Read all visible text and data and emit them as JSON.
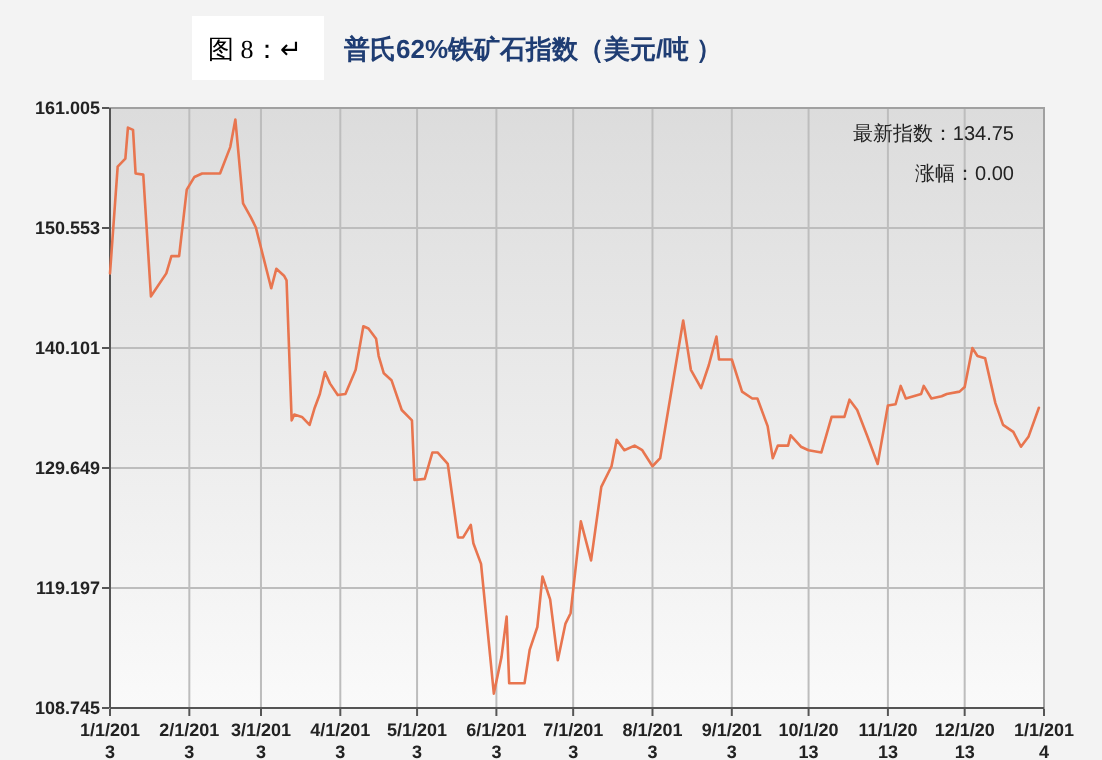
{
  "chart_data": {
    "type": "line",
    "title": "普氏62%铁矿石指数（美元/吨 ）",
    "annotations": [
      "图 8：↵",
      "最新指数：134.75",
      "涨幅：0.00"
    ],
    "x": [
      "2013-01-01",
      "2013-01-04",
      "2013-01-07",
      "2013-01-08",
      "2013-01-10",
      "2013-01-11",
      "2013-01-14",
      "2013-01-17",
      "2013-01-23",
      "2013-01-25",
      "2013-01-28",
      "2013-01-31",
      "2013-02-03",
      "2013-02-06",
      "2013-02-13",
      "2013-02-17",
      "2013-02-19",
      "2013-02-22",
      "2013-02-25",
      "2013-02-27",
      "2013-03-05",
      "2013-03-07",
      "2013-03-10",
      "2013-03-11",
      "2013-03-13",
      "2013-03-14",
      "2013-03-17",
      "2013-03-20",
      "2013-03-22",
      "2013-03-24",
      "2013-03-26",
      "2013-03-28",
      "2013-03-31",
      "2013-04-03",
      "2013-04-07",
      "2013-04-10",
      "2013-04-12",
      "2013-04-15",
      "2013-04-16",
      "2013-04-18",
      "2013-04-21",
      "2013-04-25",
      "2013-04-29",
      "2013-04-30",
      "2013-05-04",
      "2013-05-07",
      "2013-05-09",
      "2013-05-13",
      "2013-05-17",
      "2013-05-19",
      "2013-05-22",
      "2013-05-23",
      "2013-05-26",
      "2013-05-31",
      "2013-06-03",
      "2013-06-05",
      "2013-06-06",
      "2013-06-12",
      "2013-06-14",
      "2013-06-17",
      "2013-06-19",
      "2013-06-22",
      "2013-06-25",
      "2013-06-28",
      "2013-06-30",
      "2013-07-04",
      "2013-07-08",
      "2013-07-12",
      "2013-07-16",
      "2013-07-18",
      "2013-07-21",
      "2013-07-25",
      "2013-07-28",
      "2013-08-01",
      "2013-08-04",
      "2013-08-13",
      "2013-08-16",
      "2013-08-20",
      "2013-08-23",
      "2013-08-26",
      "2013-08-27",
      "2013-09-01",
      "2013-09-05",
      "2013-09-09",
      "2013-09-11",
      "2013-09-15",
      "2013-09-17",
      "2013-09-19",
      "2013-09-23",
      "2013-09-24",
      "2013-09-28",
      "2013-10-01",
      "2013-10-06",
      "2013-10-10",
      "2013-10-15",
      "2013-10-17",
      "2013-10-20",
      "2013-10-24",
      "2013-10-28",
      "2013-11-01",
      "2013-11-04",
      "2013-11-06",
      "2013-11-08",
      "2013-11-14",
      "2013-11-15",
      "2013-11-18",
      "2013-11-22",
      "2013-11-24",
      "2013-11-29",
      "2013-12-01",
      "2013-12-04",
      "2013-12-06",
      "2013-12-09",
      "2013-12-13",
      "2013-12-16",
      "2013-12-20",
      "2013-12-23",
      "2013-12-26",
      "2013-12-30"
    ],
    "series": [
      {
        "color": "#e8754f",
        "values": [
          146.6,
          155.9,
          156.6,
          159.3,
          159.1,
          155.3,
          155.2,
          144.6,
          146.6,
          148.1,
          148.1,
          153.9,
          155.0,
          155.3,
          155.3,
          157.6,
          160.0,
          152.7,
          151.5,
          150.6,
          145.3,
          147.0,
          146.4,
          146.0,
          133.8,
          134.3,
          134.1,
          133.4,
          134.9,
          136.1,
          138.0,
          137.0,
          136.0,
          136.1,
          138.2,
          142.0,
          141.8,
          140.9,
          139.4,
          137.9,
          137.3,
          134.7,
          133.8,
          128.6,
          128.7,
          131.0,
          131.0,
          130.0,
          123.6,
          123.6,
          124.7,
          123.1,
          121.3,
          110.0,
          113.2,
          116.7,
          110.9,
          110.9,
          113.8,
          115.8,
          120.2,
          118.2,
          112.9,
          116.1,
          117.0,
          125.0,
          121.6,
          128.0,
          129.8,
          132.1,
          131.2,
          131.6,
          131.2,
          129.8,
          130.5,
          142.5,
          138.2,
          136.6,
          138.6,
          141.1,
          139.1,
          139.1,
          136.3,
          135.7,
          135.7,
          133.3,
          130.5,
          131.6,
          131.6,
          132.5,
          131.5,
          131.2,
          131.0,
          134.1,
          134.1,
          135.6,
          134.7,
          132.4,
          130.0,
          135.1,
          135.2,
          136.8,
          135.7,
          136.1,
          136.8,
          135.7,
          135.9,
          136.1,
          136.3,
          136.7,
          140.1,
          139.4,
          139.2,
          135.3,
          133.4,
          132.8,
          131.5,
          132.4,
          134.9
        ]
      }
    ],
    "xlim": [
      "2013-01-01",
      "2014-01-01"
    ],
    "xticks": [
      {
        "value": "2013-01-01",
        "label": "1/1/2013"
      },
      {
        "value": "2013-02-01",
        "label": "2/1/2013"
      },
      {
        "value": "2013-03-01",
        "label": "3/1/2013"
      },
      {
        "value": "2013-04-01",
        "label": "4/1/2013"
      },
      {
        "value": "2013-05-01",
        "label": "5/1/2013"
      },
      {
        "value": "2013-06-01",
        "label": "6/1/2013"
      },
      {
        "value": "2013-07-01",
        "label": "7/1/2013"
      },
      {
        "value": "2013-08-01",
        "label": "8/1/2013"
      },
      {
        "value": "2013-09-01",
        "label": "9/1/2013"
      },
      {
        "value": "2013-10-01",
        "label": "10/1/2013"
      },
      {
        "value": "2013-11-01",
        "label": "11/1/2013"
      },
      {
        "value": "2013-12-01",
        "label": "12/1/2013"
      },
      {
        "value": "2014-01-01",
        "label": "1/1/2014"
      }
    ],
    "ylim": [
      108.745,
      161.005
    ],
    "yticks": [
      108.745,
      119.197,
      129.649,
      140.101,
      150.553,
      161.005
    ],
    "grid": true,
    "marker": "none",
    "line_style": "solid"
  }
}
